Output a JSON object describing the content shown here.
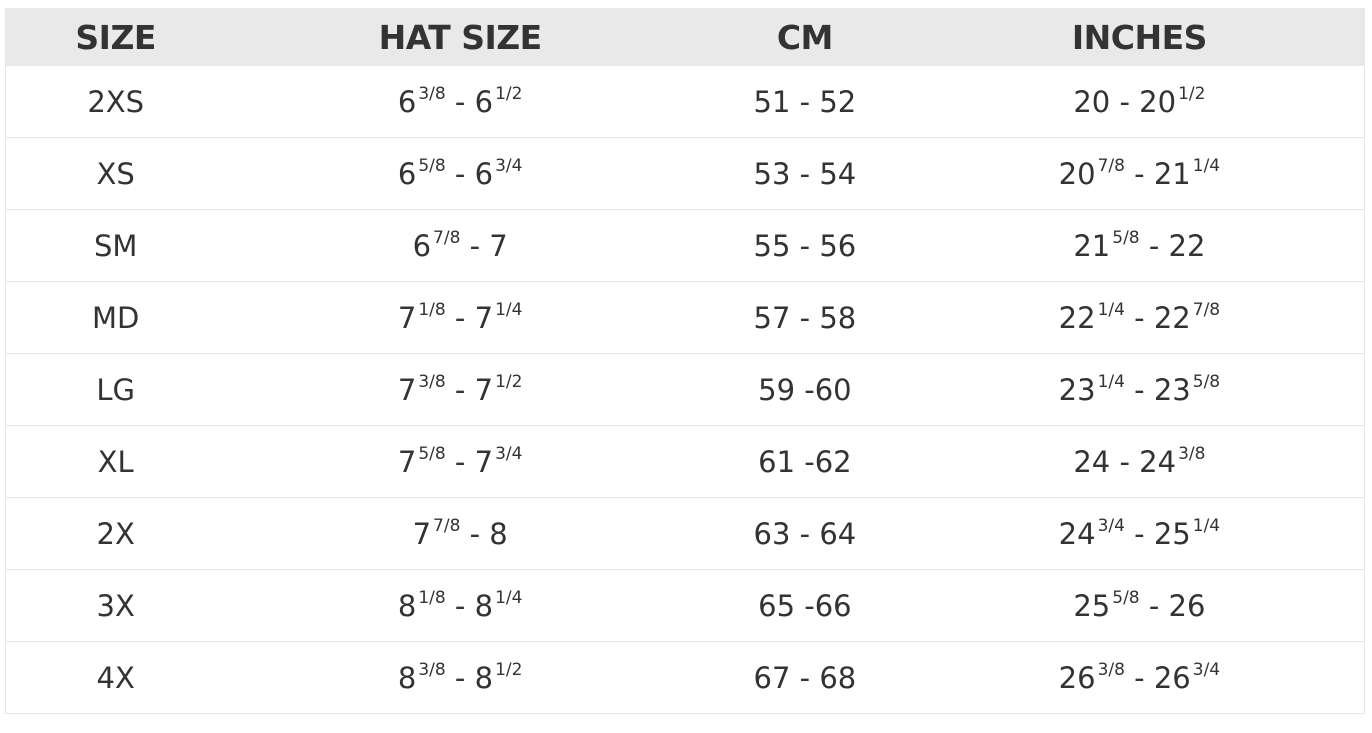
{
  "headers": [
    "SIZE",
    "HAT SIZE",
    "CM",
    "INCHES"
  ],
  "rows": [
    {
      "size": "2XS",
      "hat": [
        [
          "6",
          "3/8"
        ],
        [
          "6",
          "1/2"
        ]
      ],
      "cm": "51 - 52",
      "inches": [
        [
          "20",
          ""
        ],
        [
          "20",
          "1/2"
        ]
      ]
    },
    {
      "size": "XS",
      "hat": [
        [
          "6",
          "5/8"
        ],
        [
          "6",
          "3/4"
        ]
      ],
      "cm": "53 - 54",
      "inches": [
        [
          "20",
          "7/8"
        ],
        [
          "21",
          "1/4"
        ]
      ]
    },
    {
      "size": "SM",
      "hat": [
        [
          "6",
          "7/8"
        ],
        [
          "7",
          ""
        ]
      ],
      "cm": "55 - 56",
      "inches": [
        [
          "21",
          "5/8"
        ],
        [
          "22",
          ""
        ]
      ]
    },
    {
      "size": "MD",
      "hat": [
        [
          "7",
          "1/8"
        ],
        [
          "7",
          "1/4"
        ]
      ],
      "cm": "57 - 58",
      "inches": [
        [
          "22",
          "1/4"
        ],
        [
          "22",
          "7/8"
        ]
      ]
    },
    {
      "size": "LG",
      "hat": [
        [
          "7",
          "3/8"
        ],
        [
          "7",
          "1/2"
        ]
      ],
      "cm": "59 -60",
      "inches": [
        [
          "23",
          "1/4"
        ],
        [
          "23",
          "5/8"
        ]
      ]
    },
    {
      "size": "XL",
      "hat": [
        [
          "7",
          "5/8"
        ],
        [
          "7",
          "3/4"
        ]
      ],
      "cm": "61 -62",
      "inches": [
        [
          "24",
          ""
        ],
        [
          "24",
          "3/8"
        ]
      ]
    },
    {
      "size": "2X",
      "hat": [
        [
          "7",
          "7/8"
        ],
        [
          "8",
          ""
        ]
      ],
      "cm": "63 - 64",
      "inches": [
        [
          "24",
          "3/4"
        ],
        [
          "25",
          "1/4"
        ]
      ]
    },
    {
      "size": "3X",
      "hat": [
        [
          "8",
          "1/8"
        ],
        [
          "8",
          "1/4"
        ]
      ],
      "cm": "65 -66",
      "inches": [
        [
          "25",
          "5/8"
        ],
        [
          "26",
          ""
        ]
      ]
    },
    {
      "size": "4X",
      "hat": [
        [
          "8",
          "3/8"
        ],
        [
          "8",
          "1/2"
        ]
      ],
      "cm": "67 - 68",
      "inches": [
        [
          "26",
          "3/8"
        ],
        [
          "26",
          "3/4"
        ]
      ]
    }
  ]
}
